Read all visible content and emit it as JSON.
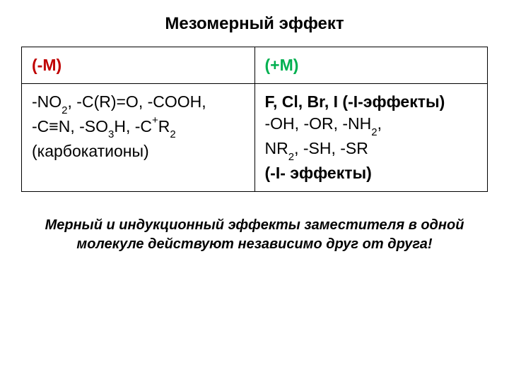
{
  "title": "Мезомерный эффект",
  "table": {
    "header_left": "(-M)",
    "header_right": "(+M)",
    "left_line1_a": "-NO",
    "left_line1_b": ",  -C(R)=O,  -COOH,",
    "left_line2_a": "-C",
    "left_line2_b": "N,  -SO",
    "left_line2_c": "H,  -C",
    "left_line2_d": "R",
    "left_line3": "(карбокатионы)",
    "right_line1": "F, Cl, Br, I (-I-эффекты)",
    "right_line2_a": "-OH,  -OR,  -NH",
    "right_line2_b": ",",
    "right_line3_a": "NR",
    "right_line3_b": ",  -SH,  -SR",
    "right_line4": "(-I- эффекты)"
  },
  "caption_line1": "Мерный и индукционный эффекты заместителя в одной",
  "caption_line2": "молекуле действуют независимо друг от друга!"
}
